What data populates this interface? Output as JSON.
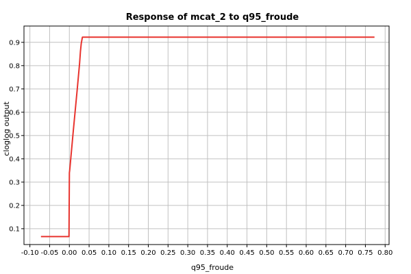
{
  "chart_data": {
    "type": "line",
    "title": "Response of mcat_2 to q95_froude",
    "xlabel": "q95_froude",
    "ylabel": "cloglog output",
    "xlim": [
      -0.115,
      0.81
    ],
    "ylim": [
      0.032,
      0.97
    ],
    "x_ticks": [
      "-0.10",
      "-0.05",
      "0.00",
      "0.05",
      "0.10",
      "0.15",
      "0.20",
      "0.25",
      "0.30",
      "0.35",
      "0.40",
      "0.45",
      "0.50",
      "0.55",
      "0.60",
      "0.65",
      "0.70",
      "0.75",
      "0.80"
    ],
    "y_ticks": [
      "0.1",
      "0.2",
      "0.3",
      "0.4",
      "0.5",
      "0.6",
      "0.7",
      "0.8",
      "0.9"
    ],
    "grid": true,
    "series": [
      {
        "color": "#e8332e",
        "points": [
          [
            -0.072,
            0.066
          ],
          [
            -0.001,
            0.066
          ],
          [
            0.0,
            0.34
          ],
          [
            0.001,
            0.352
          ],
          [
            0.01,
            0.52
          ],
          [
            0.02,
            0.7
          ],
          [
            0.026,
            0.81
          ],
          [
            0.028,
            0.86
          ],
          [
            0.03,
            0.895
          ],
          [
            0.033,
            0.922
          ],
          [
            0.773,
            0.922
          ]
        ]
      }
    ]
  }
}
